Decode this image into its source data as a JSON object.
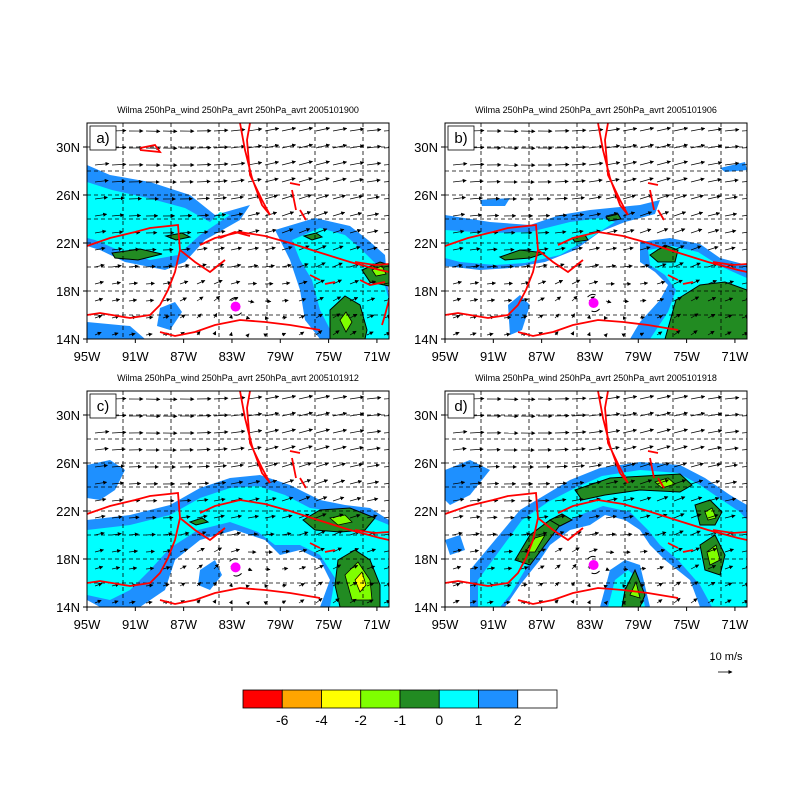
{
  "panels": [
    {
      "title": "Wilma 250hPa_wind 250hPa_avrt 250hPa_avrt 2005101900",
      "label": "a)"
    },
    {
      "title": "Wilma 250hPa_wind 250hPa_avrt 250hPa_avrt 2005101906",
      "label": "b)"
    },
    {
      "title": "Wilma 250hPa_wind 250hPa_avrt 250hPa_avrt 2005101912",
      "label": "c)"
    },
    {
      "title": "Wilma 250hPa_wind 250hPa_avrt 250hPa_avrt 2005101918",
      "label": "d)"
    }
  ],
  "axes": {
    "lat_ticks": [
      "30N",
      "26N",
      "22N",
      "18N",
      "14N"
    ],
    "lon_ticks": [
      "95W",
      "91W",
      "87W",
      "83W",
      "79W",
      "75W",
      "71W"
    ],
    "lat_range": [
      14,
      32
    ],
    "lon_range": [
      -95,
      -70
    ]
  },
  "reference_vector": {
    "label": "10 m/s"
  },
  "colorbar": {
    "colors": [
      "#ff0000",
      "#ffa500",
      "#ffff00",
      "#7fff00",
      "#228b22",
      "#00ffff",
      "#1e90ff",
      "#ffffff"
    ],
    "labels": [
      "-6",
      "-4",
      "-2",
      "-1",
      "0",
      "1",
      "2"
    ]
  },
  "colors": {
    "coast": "#ff0000",
    "storm_marker": "#ff00ff",
    "wind_arrow": "#000000",
    "grid": "#000000"
  },
  "storm_positions": [
    {
      "lon": -82.7,
      "lat": 16.7
    },
    {
      "lon": -82.7,
      "lat": 17.0
    },
    {
      "lon": -82.7,
      "lat": 17.3
    },
    {
      "lon": -82.7,
      "lat": 17.5
    }
  ]
}
